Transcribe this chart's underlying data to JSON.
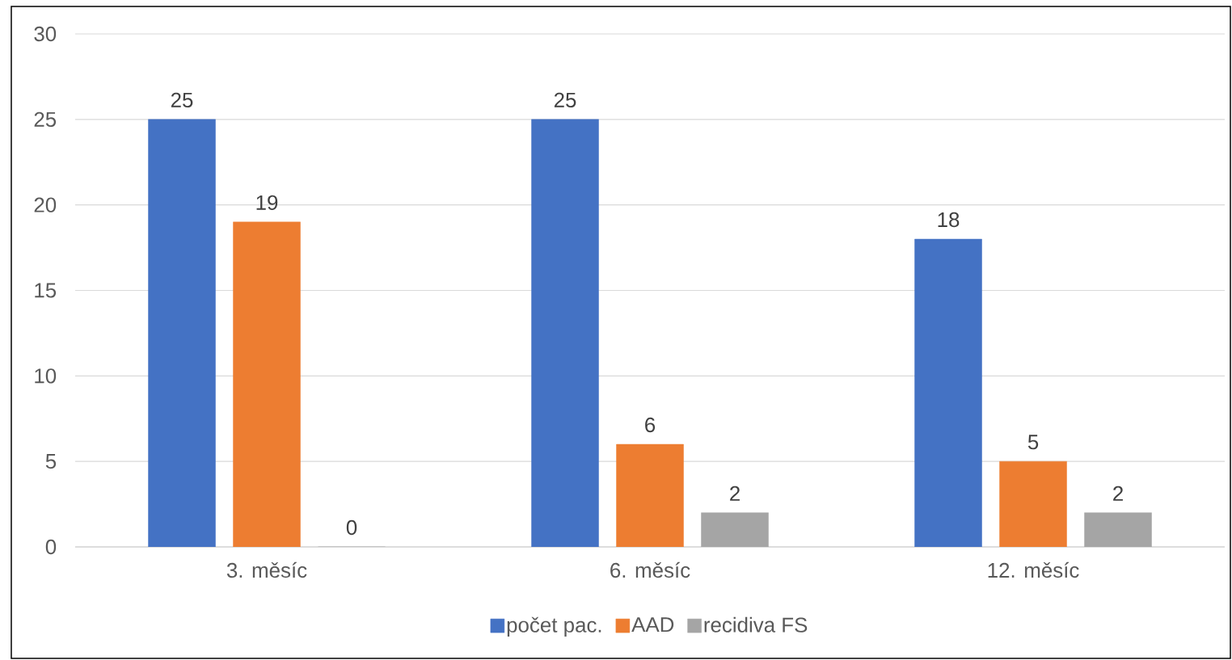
{
  "chart_data": {
    "type": "bar",
    "categories": [
      "3. měsíc",
      "6. měsíc",
      "12. měsíc"
    ],
    "series": [
      {
        "name": "počet pac.",
        "color": "#4472c4",
        "values": [
          25,
          25,
          18
        ]
      },
      {
        "name": "AAD",
        "color": "#ed7d31",
        "values": [
          19,
          6,
          5
        ]
      },
      {
        "name": "recidiva FS",
        "color": "#a5a5a5",
        "values": [
          0,
          2,
          2
        ]
      }
    ],
    "ylim": [
      0,
      30
    ],
    "yticks": [
      0,
      5,
      10,
      15,
      20,
      25,
      30
    ],
    "grid": "y",
    "legend": "bottom",
    "data_labels": true
  }
}
